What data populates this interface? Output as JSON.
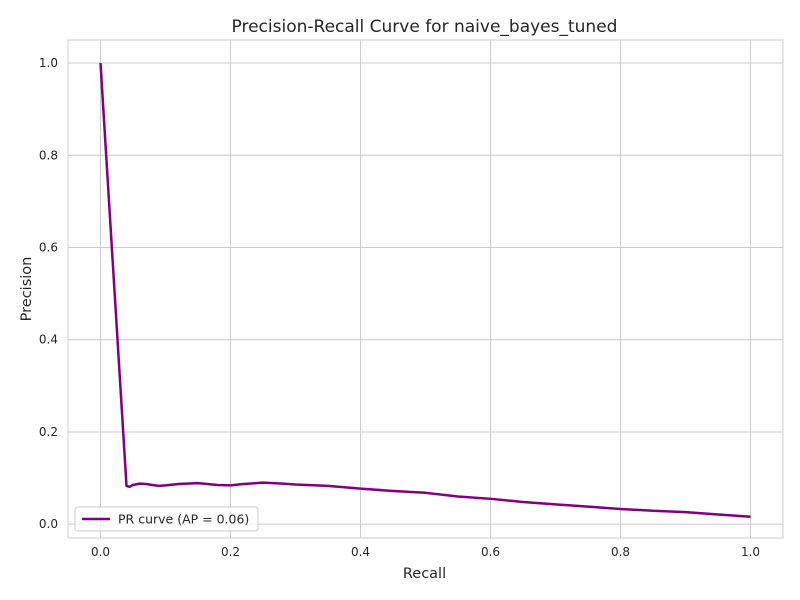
{
  "chart_data": {
    "type": "line",
    "title": "Precision-Recall Curve for naive_bayes_tuned",
    "xlabel": "Recall",
    "ylabel": "Precision",
    "xlim": [
      -0.05,
      1.05
    ],
    "ylim": [
      -0.03,
      1.05
    ],
    "xticks": [
      0.0,
      0.2,
      0.4,
      0.6,
      0.8,
      1.0
    ],
    "xtick_labels": [
      "0.0",
      "0.2",
      "0.4",
      "0.6",
      "0.8",
      "1.0"
    ],
    "yticks": [
      0.0,
      0.2,
      0.4,
      0.6,
      0.8,
      1.0
    ],
    "ytick_labels": [
      "0.0",
      "0.2",
      "0.4",
      "0.6",
      "0.8",
      "1.0"
    ],
    "grid": true,
    "legend_position": "lower-left",
    "series": [
      {
        "name": "PR curve (AP = 0.06)",
        "color": "#800080",
        "x": [
          0.0,
          0.04,
          0.045,
          0.05,
          0.06,
          0.07,
          0.08,
          0.09,
          0.1,
          0.12,
          0.15,
          0.18,
          0.2,
          0.22,
          0.25,
          0.28,
          0.3,
          0.35,
          0.4,
          0.45,
          0.5,
          0.55,
          0.6,
          0.65,
          0.7,
          0.75,
          0.8,
          0.85,
          0.9,
          0.95,
          1.0
        ],
        "y": [
          1.0,
          0.083,
          0.081,
          0.085,
          0.088,
          0.087,
          0.085,
          0.083,
          0.084,
          0.087,
          0.089,
          0.085,
          0.084,
          0.087,
          0.09,
          0.088,
          0.086,
          0.083,
          0.077,
          0.072,
          0.068,
          0.06,
          0.055,
          0.048,
          0.043,
          0.038,
          0.033,
          0.029,
          0.026,
          0.021,
          0.016
        ]
      }
    ]
  }
}
